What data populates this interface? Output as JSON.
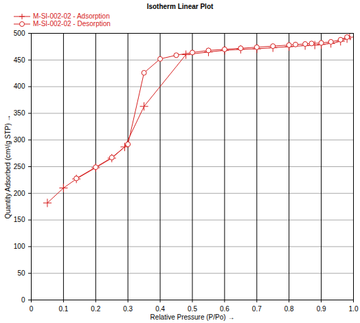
{
  "chart_data": {
    "type": "line",
    "title": "Isotherm Linear Plot",
    "x_label": "Relative Pressure (P/Po)",
    "y_label": "Quantity Adsorbed (cm³/g STP)",
    "xlim": [
      0,
      1
    ],
    "ylim": [
      0,
      500
    ],
    "xticks": [
      0,
      0.1,
      0.2,
      0.3,
      0.4,
      0.5,
      0.6,
      0.7,
      0.8,
      0.9,
      {
        "value": 1,
        "label": "1.0"
      }
    ],
    "yticks": [
      0,
      50,
      100,
      150,
      200,
      250,
      300,
      350,
      400,
      450,
      500
    ],
    "grid": true,
    "legend": "top-left",
    "series": [
      {
        "name": "M-SI-002-02 - Adsorption",
        "color": "#d62020",
        "marker": "plus",
        "line_style": "solid",
        "x": [
          0.05,
          0.1,
          0.14,
          0.2,
          0.25,
          0.29,
          0.35,
          0.48,
          0.55,
          0.6,
          0.65,
          0.7,
          0.75,
          0.8,
          0.85,
          0.88,
          0.9,
          0.93,
          0.96,
          0.98,
          0.99
        ],
        "values": [
          182,
          210,
          227,
          248,
          266,
          287,
          363,
          460,
          465,
          468,
          470,
          471,
          473,
          475,
          477,
          478,
          479,
          481,
          485,
          490,
          495
        ]
      },
      {
        "name": "M-SI-002-02 - Desorption",
        "color": "#d62020",
        "marker": "circle",
        "line_style": "solid",
        "x": [
          0.995,
          0.98,
          0.96,
          0.93,
          0.9,
          0.87,
          0.85,
          0.82,
          0.8,
          0.75,
          0.7,
          0.65,
          0.6,
          0.55,
          0.5,
          0.45,
          0.4,
          0.35,
          0.3,
          0.25,
          0.2,
          0.14
        ],
        "values": [
          497,
          493,
          488,
          484,
          482,
          481,
          480,
          479,
          478,
          476,
          474,
          472,
          470,
          468,
          464,
          459,
          452,
          426,
          292,
          267,
          249,
          228
        ]
      }
    ]
  }
}
